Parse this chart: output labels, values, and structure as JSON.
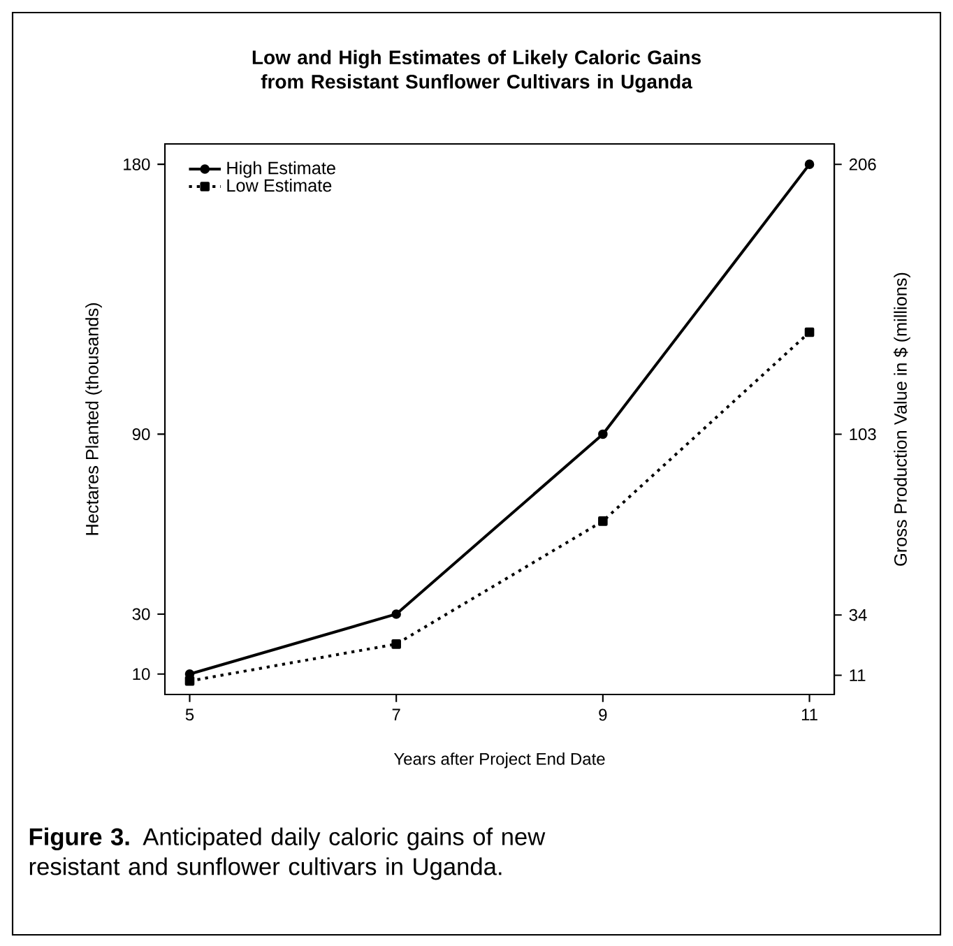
{
  "chart_data": {
    "type": "line",
    "title": "Low and High Estimates of Likely Caloric Gains from Resistant Sunflower Cultivars in Uganda",
    "xlabel": "Years after Project End Date",
    "ylabel": "Hectares Planted (thousands)",
    "y2label": "Gross Production Value in $ (millions)",
    "x": [
      5,
      7,
      9,
      11
    ],
    "series": [
      {
        "name": "High Estimate",
        "color": "#000000",
        "values": [
          10,
          30,
          90,
          180
        ],
        "marker": "circle",
        "line_style": "solid"
      },
      {
        "name": "Low Estimate",
        "color": "#000000",
        "values": [
          7.7,
          20,
          61,
          124
        ],
        "marker": "square",
        "line_style": "dotted"
      }
    ],
    "xlim": [
      4.76,
      11.24
    ],
    "xticks": [
      5,
      7,
      9,
      11
    ],
    "ylim": [
      3.2,
      186.8
    ],
    "yticks": [
      10,
      30,
      90,
      180
    ],
    "y2lim": [
      3.66,
      213.8
    ],
    "y2ticks": [
      11,
      34,
      103,
      206
    ],
    "legend": "top left",
    "grid": false,
    "annotations": [
      "**Figure 3.**  Anticipated daily caloric gains of new resistant and sunflower cultivars in Uganda."
    ]
  }
}
